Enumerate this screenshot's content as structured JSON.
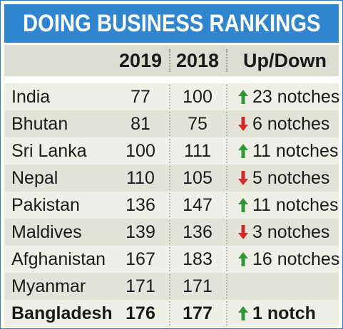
{
  "title": "DOING BUSINESS RANKINGS",
  "headers": {
    "country": "",
    "y2019": "2019",
    "y2018": "2018",
    "updown": "Up/Down"
  },
  "colors": {
    "banner": "#2f86cf",
    "up_arrow": "#2e9a3a",
    "down_arrow": "#d62a2a"
  },
  "chart_data": {
    "type": "table",
    "title": "DOING BUSINESS RANKINGS",
    "columns": [
      "",
      "2019",
      "2018",
      "Up/Down"
    ],
    "rows": [
      {
        "country": "India",
        "y2019": 77,
        "y2018": 100,
        "direction": "up",
        "change": "23 notches",
        "bold": false
      },
      {
        "country": "Bhutan",
        "y2019": 81,
        "y2018": 75,
        "direction": "down",
        "change": "6 notches",
        "bold": false
      },
      {
        "country": "Sri Lanka",
        "y2019": 100,
        "y2018": 111,
        "direction": "up",
        "change": "11 notches",
        "bold": false
      },
      {
        "country": "Nepal",
        "y2019": 110,
        "y2018": 105,
        "direction": "down",
        "change": "5 notches",
        "bold": false
      },
      {
        "country": "Pakistan",
        "y2019": 136,
        "y2018": 147,
        "direction": "up",
        "change": "11 notches",
        "bold": false
      },
      {
        "country": "Maldives",
        "y2019": 139,
        "y2018": 136,
        "direction": "down",
        "change": "3 notches",
        "bold": false
      },
      {
        "country": "Afghanistan",
        "y2019": 167,
        "y2018": 183,
        "direction": "up",
        "change": "16 notches",
        "bold": false
      },
      {
        "country": "Myanmar",
        "y2019": 171,
        "y2018": 171,
        "direction": "none",
        "change": "",
        "bold": false
      },
      {
        "country": "Bangladesh",
        "y2019": 176,
        "y2018": 177,
        "direction": "up",
        "change": "1 notch",
        "bold": true
      }
    ]
  }
}
